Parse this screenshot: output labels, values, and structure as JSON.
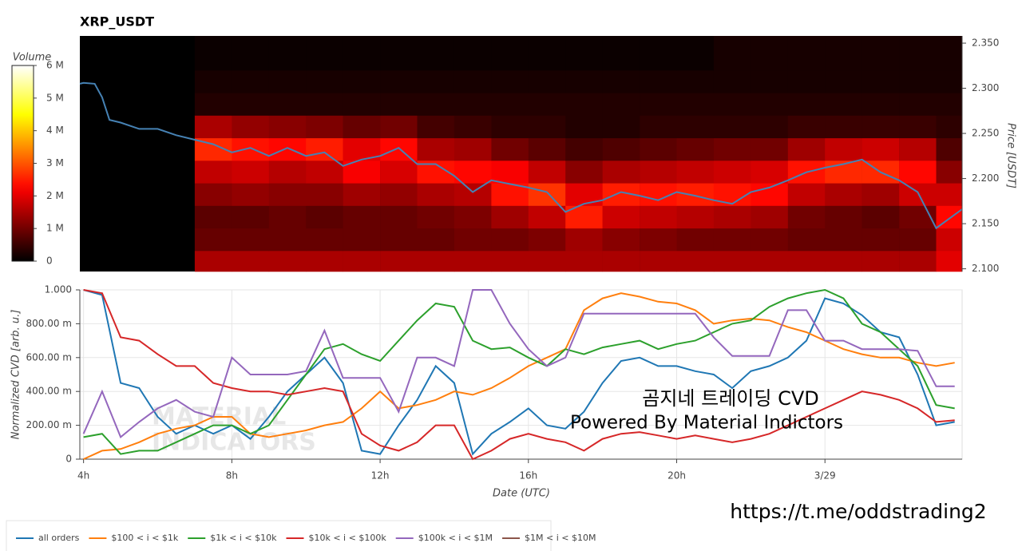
{
  "chart_data": [
    {
      "type": "heatmap",
      "title": "XRP_USDT",
      "colorbar_label": "Volume",
      "y_label": "Price [USDT]",
      "colormap": "hot",
      "xlim": [
        3.9,
        27.7
      ],
      "ylim": [
        2.097,
        2.358
      ],
      "yticks": [
        {
          "value": 2.1,
          "label": "2.100"
        },
        {
          "value": 2.15,
          "label": "2.150"
        },
        {
          "value": 2.2,
          "label": "2.200"
        },
        {
          "value": 2.25,
          "label": "2.250"
        },
        {
          "value": 2.3,
          "label": "2.300"
        },
        {
          "value": 2.35,
          "label": "2.350"
        }
      ],
      "zlim": [
        0,
        6000000
      ],
      "zticks": [
        0,
        {
          "value": 1000000,
          "label": "1 M"
        },
        {
          "value": 2000000,
          "label": "2 M"
        },
        {
          "value": 3000000,
          "label": "3 M"
        },
        {
          "value": 4000000,
          "label": "4 M"
        },
        {
          "value": 5000000,
          "label": "5 M"
        },
        {
          "value": 6000000,
          "label": "6 M"
        }
      ],
      "x_bins": [
        7,
        8,
        9,
        10,
        11,
        12,
        13,
        14,
        15,
        16,
        17,
        18,
        19,
        20,
        21,
        22,
        23,
        24,
        25,
        26,
        27,
        27.7
      ],
      "y_bins": [
        2.097,
        2.12,
        2.145,
        2.17,
        2.195,
        2.22,
        2.245,
        2.27,
        2.295,
        2.32,
        2.358
      ],
      "z": [
        [
          1500000,
          1500000,
          1500000,
          1500000,
          1500000,
          1500000,
          1500000,
          1500000,
          1500000,
          1500000,
          1500000,
          1500000,
          1500000,
          1500000,
          1500000,
          1500000,
          1500000,
          1500000,
          1500000,
          1500000,
          2000000
        ],
        [
          900000,
          900000,
          900000,
          900000,
          900000,
          900000,
          900000,
          1000000,
          1000000,
          1100000,
          1400000,
          1200000,
          1100000,
          1000000,
          1000000,
          1000000,
          900000,
          900000,
          900000,
          900000,
          1800000
        ],
        [
          800000,
          800000,
          900000,
          800000,
          900000,
          900000,
          1000000,
          1100000,
          1400000,
          1700000,
          2500000,
          1800000,
          1700000,
          1600000,
          1500000,
          1400000,
          1000000,
          900000,
          800000,
          1000000,
          2300000
        ],
        [
          1200000,
          1300000,
          1200000,
          1200000,
          1400000,
          1300000,
          1500000,
          1600000,
          2400000,
          2700000,
          2000000,
          2500000,
          2400000,
          2500000,
          2400000,
          2300000,
          1700000,
          1500000,
          1400000,
          1800000,
          1800000
        ],
        [
          1700000,
          1800000,
          1600000,
          1700000,
          2200000,
          1900000,
          2400000,
          2300000,
          2200000,
          1700000,
          1200000,
          1500000,
          1600000,
          1700000,
          1800000,
          1900000,
          2400000,
          2600000,
          2600000,
          2300000,
          1200000
        ],
        [
          2600000,
          2400000,
          2300000,
          2500000,
          2000000,
          2300000,
          1500000,
          1400000,
          1000000,
          800000,
          600000,
          700000,
          800000,
          900000,
          1000000,
          1000000,
          1400000,
          1700000,
          1800000,
          1600000,
          700000
        ],
        [
          1500000,
          1300000,
          1200000,
          1100000,
          900000,
          1000000,
          600000,
          500000,
          400000,
          400000,
          300000,
          300000,
          400000,
          400000,
          400000,
          400000,
          500000,
          500000,
          500000,
          500000,
          400000
        ],
        [
          300000,
          300000,
          300000,
          300000,
          300000,
          300000,
          300000,
          300000,
          300000,
          300000,
          300000,
          300000,
          300000,
          300000,
          300000,
          300000,
          300000,
          300000,
          300000,
          300000,
          300000
        ],
        [
          200000,
          200000,
          200000,
          200000,
          200000,
          200000,
          200000,
          200000,
          200000,
          200000,
          200000,
          200000,
          200000,
          200000,
          200000,
          200000,
          200000,
          200000,
          200000,
          200000,
          200000
        ],
        [
          100000,
          100000,
          100000,
          100000,
          100000,
          100000,
          100000,
          100000,
          100000,
          100000,
          100000,
          100000,
          100000,
          100000,
          200000,
          200000,
          200000,
          200000,
          200000,
          200000,
          200000
        ]
      ],
      "price_line": {
        "color": "#4682b4",
        "x": [
          3.9,
          4.0,
          4.3,
          4.5,
          4.7,
          5.0,
          5.5,
          6.0,
          6.5,
          7.0,
          7.5,
          8.0,
          8.5,
          9.0,
          9.5,
          10.0,
          10.5,
          11.0,
          11.5,
          12.0,
          12.5,
          13.0,
          13.5,
          14.0,
          14.5,
          15.0,
          15.5,
          16.0,
          16.5,
          17.0,
          17.5,
          18.0,
          18.5,
          19.0,
          19.5,
          20.0,
          20.5,
          21.0,
          21.5,
          22.0,
          22.5,
          23.0,
          23.5,
          24.0,
          24.5,
          25.0,
          25.5,
          26.0,
          26.5,
          27.0,
          27.3,
          27.7
        ],
        "values": [
          2.305,
          2.306,
          2.305,
          2.29,
          2.265,
          2.262,
          2.255,
          2.255,
          2.248,
          2.243,
          2.238,
          2.229,
          2.234,
          2.225,
          2.234,
          2.225,
          2.229,
          2.214,
          2.221,
          2.225,
          2.234,
          2.216,
          2.216,
          2.203,
          2.185,
          2.198,
          2.194,
          2.19,
          2.185,
          2.163,
          2.172,
          2.176,
          2.185,
          2.181,
          2.176,
          2.185,
          2.181,
          2.176,
          2.172,
          2.185,
          2.19,
          2.198,
          2.207,
          2.212,
          2.216,
          2.221,
          2.207,
          2.198,
          2.185,
          2.145,
          2.154,
          2.166
        ]
      }
    },
    {
      "type": "line",
      "y_label": "Normalized CVD [arb. u.]",
      "x_label": "Date (UTC)",
      "grid": true,
      "legend": "bottom-left",
      "xlim": [
        3.9,
        27.7
      ],
      "ylim": [
        0,
        1
      ],
      "xticks": [
        {
          "value": 4,
          "label": "4h"
        },
        {
          "value": 8,
          "label": "8h"
        },
        {
          "value": 12,
          "label": "12h"
        },
        {
          "value": 16,
          "label": "16h"
        },
        {
          "value": 20,
          "label": "20h"
        },
        {
          "value": 24,
          "label": "3/29"
        }
      ],
      "yticks": [
        0,
        {
          "value": 0.2,
          "label": "200.00 m"
        },
        {
          "value": 0.4,
          "label": "400.00 m"
        },
        {
          "value": 0.6,
          "label": "600.00 m"
        },
        {
          "value": 0.8,
          "label": "800.00 m"
        },
        {
          "value": 1,
          "label": "1.000"
        }
      ],
      "x": [
        4,
        4.5,
        5,
        5.5,
        6,
        6.5,
        7,
        7.5,
        8,
        8.5,
        9,
        9.5,
        10,
        10.5,
        11,
        11.5,
        12,
        12.5,
        13,
        13.5,
        14,
        14.5,
        15,
        15.5,
        16,
        16.5,
        17,
        17.5,
        18,
        18.5,
        19,
        19.5,
        20,
        20.5,
        21,
        21.5,
        22,
        22.5,
        23,
        23.5,
        24,
        24.5,
        25,
        25.5,
        26,
        26.5,
        27,
        27.5
      ],
      "series": [
        {
          "name": "all orders",
          "color": "#1f77b4",
          "values": [
            1.0,
            0.97,
            0.45,
            0.42,
            0.25,
            0.15,
            0.2,
            0.15,
            0.2,
            0.12,
            0.25,
            0.4,
            0.5,
            0.6,
            0.45,
            0.05,
            0.03,
            0.2,
            0.35,
            0.55,
            0.45,
            0.03,
            0.15,
            0.22,
            0.3,
            0.2,
            0.18,
            0.28,
            0.45,
            0.58,
            0.6,
            0.55,
            0.55,
            0.52,
            0.5,
            0.42,
            0.52,
            0.55,
            0.6,
            0.7,
            0.95,
            0.92,
            0.85,
            0.75,
            0.72,
            0.5,
            0.2,
            0.22
          ]
        },
        {
          "name": "$100 < i < $1k",
          "color": "#ff7f0e",
          "values": [
            0.0,
            0.05,
            0.06,
            0.1,
            0.15,
            0.18,
            0.2,
            0.25,
            0.25,
            0.15,
            0.13,
            0.15,
            0.17,
            0.2,
            0.22,
            0.3,
            0.4,
            0.3,
            0.32,
            0.35,
            0.4,
            0.38,
            0.42,
            0.48,
            0.55,
            0.6,
            0.65,
            0.88,
            0.95,
            0.98,
            0.96,
            0.93,
            0.92,
            0.88,
            0.8,
            0.82,
            0.83,
            0.82,
            0.78,
            0.75,
            0.7,
            0.65,
            0.62,
            0.6,
            0.6,
            0.57,
            0.55,
            0.57
          ]
        },
        {
          "name": "$1k < i < $10k",
          "color": "#2ca02c",
          "values": [
            0.13,
            0.15,
            0.03,
            0.05,
            0.05,
            0.1,
            0.15,
            0.2,
            0.2,
            0.15,
            0.2,
            0.35,
            0.5,
            0.65,
            0.68,
            0.62,
            0.58,
            0.7,
            0.82,
            0.92,
            0.9,
            0.7,
            0.65,
            0.66,
            0.6,
            0.55,
            0.65,
            0.62,
            0.66,
            0.68,
            0.7,
            0.65,
            0.68,
            0.7,
            0.75,
            0.8,
            0.82,
            0.9,
            0.95,
            0.98,
            1.0,
            0.95,
            0.8,
            0.75,
            0.65,
            0.55,
            0.32,
            0.3
          ]
        },
        {
          "name": "$10k < i < $100k",
          "color": "#d62728",
          "values": [
            1.0,
            0.98,
            0.72,
            0.7,
            0.62,
            0.55,
            0.55,
            0.45,
            0.42,
            0.4,
            0.4,
            0.38,
            0.4,
            0.42,
            0.4,
            0.15,
            0.08,
            0.05,
            0.1,
            0.2,
            0.2,
            0.0,
            0.05,
            0.12,
            0.15,
            0.12,
            0.1,
            0.05,
            0.12,
            0.15,
            0.16,
            0.14,
            0.12,
            0.14,
            0.12,
            0.1,
            0.12,
            0.15,
            0.2,
            0.25,
            0.3,
            0.35,
            0.4,
            0.38,
            0.35,
            0.3,
            0.22,
            0.23
          ]
        },
        {
          "name": "$100k < i < $1M",
          "color": "#9467bd",
          "values": [
            0.15,
            0.4,
            0.13,
            0.22,
            0.3,
            0.35,
            0.28,
            0.25,
            0.6,
            0.5,
            0.5,
            0.5,
            0.52,
            0.76,
            0.48,
            0.48,
            0.48,
            0.28,
            0.6,
            0.6,
            0.55,
            1.0,
            1.0,
            0.8,
            0.65,
            0.55,
            0.6,
            0.86,
            0.86,
            0.86,
            0.86,
            0.86,
            0.86,
            0.86,
            0.72,
            0.61,
            0.61,
            0.61,
            0.88,
            0.88,
            0.7,
            0.7,
            0.65,
            0.65,
            0.65,
            0.64,
            0.43,
            0.43
          ]
        },
        {
          "name": "$1M < i < $10M",
          "color": "#8c564b",
          "values": [
            null,
            null,
            null,
            null,
            null,
            null,
            null,
            null,
            null,
            null,
            null,
            null,
            null,
            null,
            null,
            null,
            null,
            null,
            null,
            null,
            null,
            null,
            null,
            null,
            null,
            null,
            null,
            null,
            null,
            null,
            null,
            null,
            null,
            null,
            null,
            null,
            null,
            null,
            null,
            null,
            null,
            null,
            null,
            null,
            null,
            null,
            null,
            null
          ]
        }
      ]
    }
  ],
  "annotations": {
    "watermark": [
      "MATERIAL",
      "INDICATORS"
    ],
    "overlay": [
      "곰지네 트레이딩 CVD",
      "Powered By Material Indictors"
    ],
    "link": "https://t.me/oddstrading2"
  }
}
